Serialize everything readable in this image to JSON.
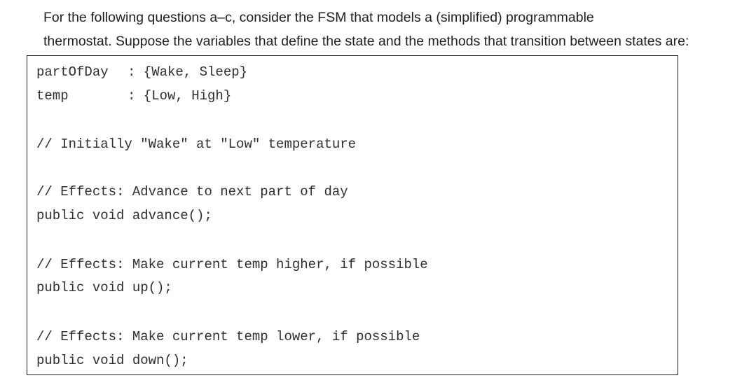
{
  "intro": {
    "line1": "For the following questions a–c, consider the FSM that models a (simplified) programmable",
    "line2": "thermostat. Suppose the variables that define the state and the methods that transition between states are:"
  },
  "code": {
    "decl1_name": "partOfDay",
    "decl1_rest": ": {Wake, Sleep}",
    "decl2_name": "temp",
    "decl2_rest": ": {Low, High}",
    "comment_initial": "// Initially \"Wake\" at \"Low\" temperature",
    "comment_advance": "// Effects: Advance to next part of day",
    "method_advance": "public void advance();",
    "comment_up": "// Effects: Make current temp higher, if possible",
    "method_up": "public void up();",
    "comment_down": "// Effects: Make current temp lower, if possible",
    "method_down": "public void down();"
  }
}
